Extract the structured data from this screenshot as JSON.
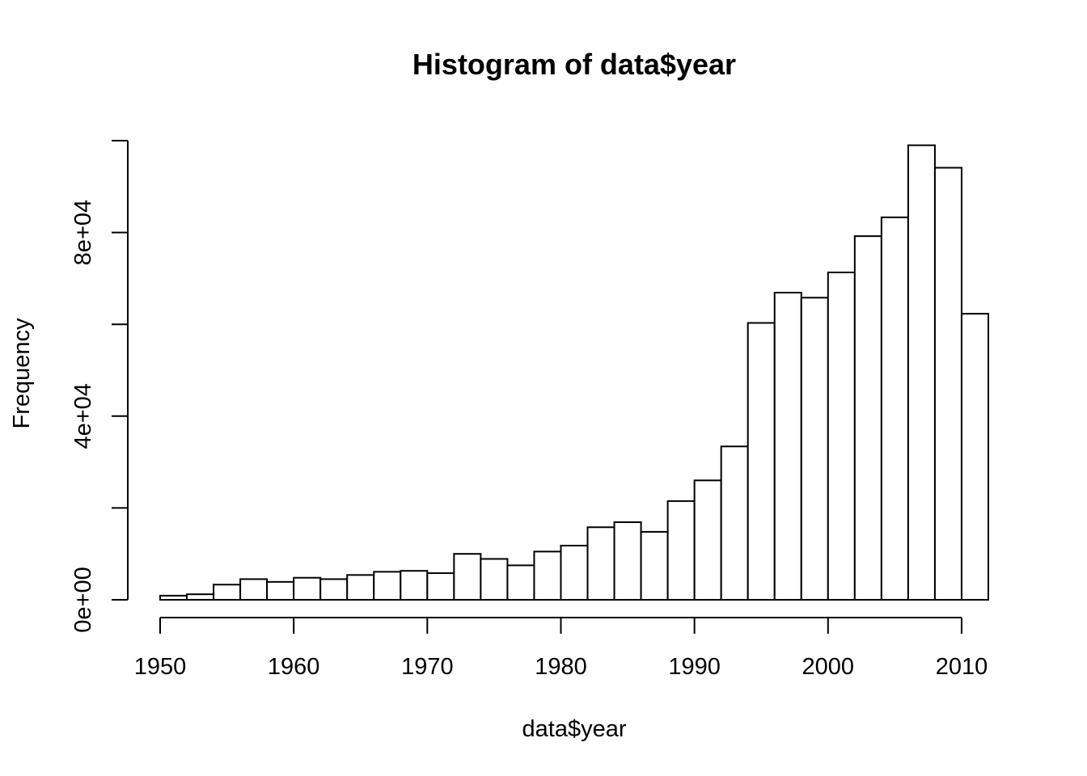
{
  "chart_data": {
    "type": "histogram",
    "title": "Histogram of data$year",
    "xlabel": "data$year",
    "ylabel": "Frequency",
    "xlim": [
      1950,
      2012
    ],
    "ylim": [
      0,
      100000
    ],
    "bin_width": 2,
    "bins": [
      {
        "start": 1950,
        "end": 1952,
        "count": 900
      },
      {
        "start": 1952,
        "end": 1954,
        "count": 1200
      },
      {
        "start": 1954,
        "end": 1956,
        "count": 3300
      },
      {
        "start": 1956,
        "end": 1958,
        "count": 4500
      },
      {
        "start": 1958,
        "end": 1960,
        "count": 3900
      },
      {
        "start": 1960,
        "end": 1962,
        "count": 4800
      },
      {
        "start": 1962,
        "end": 1964,
        "count": 4500
      },
      {
        "start": 1964,
        "end": 1966,
        "count": 5400
      },
      {
        "start": 1966,
        "end": 1968,
        "count": 6100
      },
      {
        "start": 1968,
        "end": 1970,
        "count": 6300
      },
      {
        "start": 1970,
        "end": 1972,
        "count": 5800
      },
      {
        "start": 1972,
        "end": 1974,
        "count": 10000
      },
      {
        "start": 1974,
        "end": 1976,
        "count": 8900
      },
      {
        "start": 1976,
        "end": 1978,
        "count": 7500
      },
      {
        "start": 1978,
        "end": 1980,
        "count": 10500
      },
      {
        "start": 1980,
        "end": 1982,
        "count": 11800
      },
      {
        "start": 1982,
        "end": 1984,
        "count": 15800
      },
      {
        "start": 1984,
        "end": 1986,
        "count": 16900
      },
      {
        "start": 1986,
        "end": 1988,
        "count": 14800
      },
      {
        "start": 1988,
        "end": 1990,
        "count": 21500
      },
      {
        "start": 1990,
        "end": 1992,
        "count": 26000
      },
      {
        "start": 1992,
        "end": 1994,
        "count": 33400
      },
      {
        "start": 1994,
        "end": 1996,
        "count": 60300
      },
      {
        "start": 1996,
        "end": 1998,
        "count": 66900
      },
      {
        "start": 1998,
        "end": 2000,
        "count": 65800
      },
      {
        "start": 2000,
        "end": 2002,
        "count": 71300
      },
      {
        "start": 2002,
        "end": 2004,
        "count": 79200
      },
      {
        "start": 2004,
        "end": 2006,
        "count": 83300
      },
      {
        "start": 2006,
        "end": 2008,
        "count": 99000
      },
      {
        "start": 2008,
        "end": 2010,
        "count": 94100
      },
      {
        "start": 2010,
        "end": 2012,
        "count": 62300
      }
    ],
    "x_ticks": [
      1950,
      1960,
      1970,
      1980,
      1990,
      2000,
      2010
    ],
    "x_tick_labels": [
      "1950",
      "1960",
      "1970",
      "1980",
      "1990",
      "2000",
      "2010"
    ],
    "y_ticks": [
      0,
      20000,
      40000,
      60000,
      80000,
      100000
    ],
    "y_tick_labels": [
      "0e+00",
      "",
      "4e+04",
      "",
      "8e+04",
      ""
    ],
    "grid": false,
    "legend": "none",
    "colors": {
      "bar_fill": "#ffffff",
      "bar_stroke": "#000000"
    }
  }
}
